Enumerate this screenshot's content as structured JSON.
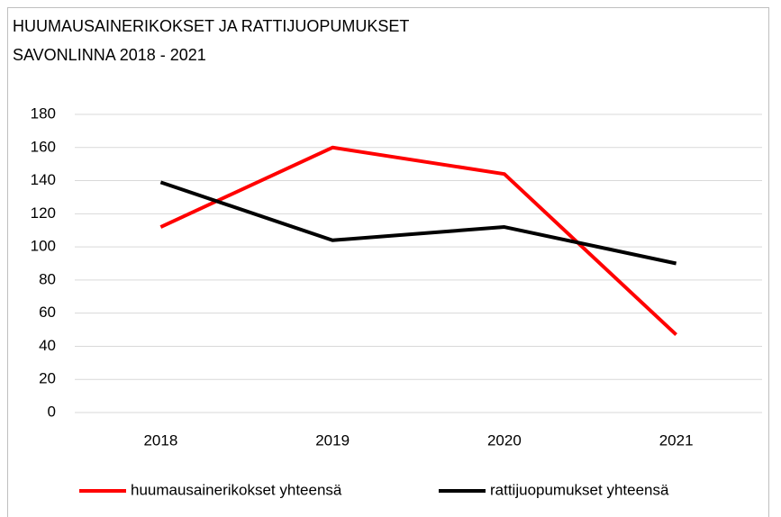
{
  "chart_data": {
    "type": "line",
    "title": [
      "HUUMAUSAINERIKOKSET JA RATTIJUOPUMUKSET",
      "SAVONLINNA 2018 - 2021"
    ],
    "categories": [
      "2018",
      "2019",
      "2020",
      "2021"
    ],
    "series": [
      {
        "name": "huumausainerikokset yhteensä",
        "color": "#ff0000",
        "values": [
          112,
          160,
          144,
          47
        ]
      },
      {
        "name": "rattijuopumukset yhteensä",
        "color": "#000000",
        "values": [
          139,
          104,
          112,
          90
        ]
      }
    ],
    "ylim": [
      0,
      180
    ],
    "yticks": [
      0,
      20,
      40,
      60,
      80,
      100,
      120,
      140,
      160,
      180
    ],
    "grid": true,
    "legend": "bottom"
  }
}
